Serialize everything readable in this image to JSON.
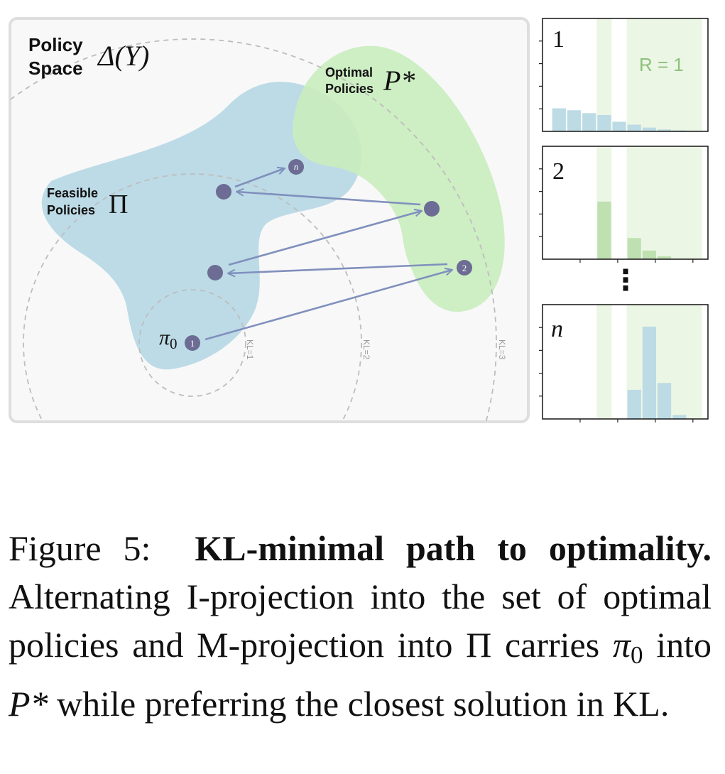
{
  "diagram": {
    "policy_space": {
      "title_line1": "Policy",
      "title_line2": "Space",
      "symbol": "Δ(Y)"
    },
    "optimal": {
      "title_line1": "Optimal",
      "title_line2": "Policies",
      "symbol": "P*"
    },
    "feasible": {
      "title_line1": "Feasible",
      "title_line2": "Policies",
      "symbol": "Π"
    },
    "start_symbol": "π",
    "start_subscript": "0",
    "kl_rings": [
      "KL=1",
      "KL=2",
      "KL=3"
    ],
    "step_labels": {
      "first": "1",
      "second": "2",
      "last": "n"
    }
  },
  "histograms": {
    "panels": [
      {
        "label": "1",
        "values": [
          0.24,
          0.22,
          0.19,
          0.17,
          0.1,
          0.07,
          0.04,
          0.02,
          0.01,
          0.0
        ]
      },
      {
        "label": "2",
        "values": [
          0.0,
          0.0,
          0.0,
          0.6,
          0.0,
          0.22,
          0.09,
          0.03,
          0.0,
          0.0
        ]
      },
      {
        "label": "n",
        "values": [
          0.0,
          0.0,
          0.0,
          0.0,
          0.0,
          0.3,
          0.95,
          0.37,
          0.04,
          0.0
        ]
      }
    ],
    "optimal_bins": [
      3,
      5,
      6,
      7,
      8,
      9
    ],
    "reward_label": "R = 1",
    "ellipsis": "⋮"
  },
  "colors": {
    "frame_bg": "#f8f8f8",
    "frame_border": "#dedede",
    "feasible_fill": "#bddbe6",
    "optimal_fill": "#c9ecbe",
    "point": "#6c6c94",
    "arrow": "#8090bd",
    "hist_blue": "#bcdbe5",
    "hist_green": "#bfe0b0",
    "band_green": "#ebf6e4",
    "ring": "#bdbdbd"
  },
  "caption": {
    "prefix": "Figure 5:",
    "bold": "KL-minimal path to optimality.",
    "text_part1": "Alternating I-projection into the set of optimal policies and M-projection into Π carries",
    "pi": "π",
    "pi_sub": "0",
    "text_part2": "into",
    "pstar": "P*",
    "text_part3": "while preferring the closest solution in KL."
  }
}
